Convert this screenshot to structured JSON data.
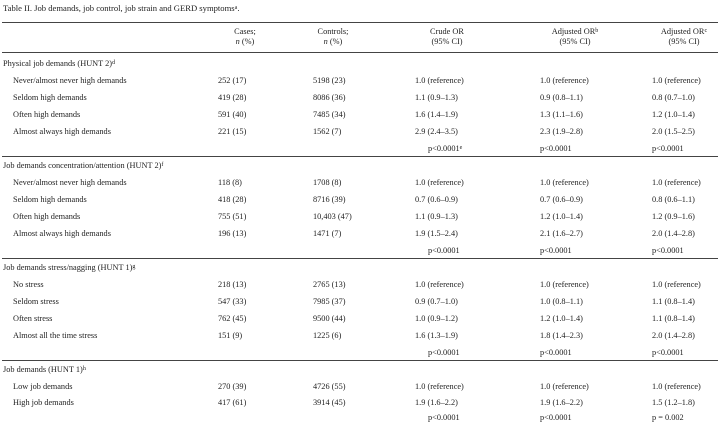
{
  "caption": {
    "text": "Table II. Job demands, job control, job strain and GERD symptoms",
    "sup": "a"
  },
  "columns": [
    {
      "line1": "Cases;",
      "line2_italic": "n",
      "line2_rest": " (%)",
      "sup": ""
    },
    {
      "line1": "Controls;",
      "line2_italic": "n",
      "line2_rest": " (%)",
      "sup": ""
    },
    {
      "line1": "Crude OR",
      "line2_italic": "",
      "line2_rest": "(95% CI)",
      "sup": ""
    },
    {
      "line1": "Adjusted OR",
      "line2_italic": "",
      "line2_rest": "(95% CI)",
      "sup": "b"
    },
    {
      "line1": "Adjusted OR",
      "line2_italic": "",
      "line2_rest": "(95% CI)",
      "sup": "c"
    }
  ],
  "sections": [
    {
      "title": "Physical job demands (HUNT 2)",
      "sup": "d",
      "rows": [
        {
          "label": "Never/almost never high demands",
          "cases": "252 (17)",
          "controls": "5198 (23)",
          "crude": "1.0 (reference)",
          "adj_b": "1.0 (reference)",
          "adj_c": "1.0 (reference)"
        },
        {
          "label": "Seldom high demands",
          "cases": "419 (28)",
          "controls": "8086 (36)",
          "crude": "1.1 (0.9–1.3)",
          "adj_b": "0.9 (0.8–1.1)",
          "adj_c": "0.8 (0.7–1.0)"
        },
        {
          "label": "Often high demands",
          "cases": "591 (40)",
          "controls": "7485 (34)",
          "crude": "1.6 (1.4–1.9)",
          "adj_b": "1.3 (1.1–1.6)",
          "adj_c": "1.2 (1.0–1.4)"
        },
        {
          "label": "Almost always high demands",
          "cases": "221 (15)",
          "controls": "1562 (7)",
          "crude": "2.9 (2.4–3.5)",
          "adj_b": "2.3 (1.9–2.8)",
          "adj_c": "2.0 (1.5–2.5)"
        }
      ],
      "p": {
        "crude": "p<0.0001",
        "crude_sup": "e",
        "adj_b": "p<0.0001",
        "adj_c": "p<0.0001"
      }
    },
    {
      "title": "Job demands concentration/attention (HUNT 2)",
      "sup": "f",
      "rows": [
        {
          "label": "Never/almost never high demands",
          "cases": "118 (8)",
          "controls": "1708 (8)",
          "crude": "1.0 (reference)",
          "adj_b": "1.0 (reference)",
          "adj_c": "1.0 (reference)"
        },
        {
          "label": "Seldom high demands",
          "cases": "418 (28)",
          "controls": "8716 (39)",
          "crude": "0.7 (0.6–0.9)",
          "adj_b": "0.7 (0.6–0.9)",
          "adj_c": "0.8 (0.6–1.1)"
        },
        {
          "label": "Often high demands",
          "cases": "755 (51)",
          "controls": "10,403 (47)",
          "crude": "1.1 (0.9–1.3)",
          "adj_b": "1.2 (1.0–1.4)",
          "adj_c": "1.2 (0.9–1.6)"
        },
        {
          "label": "Almost always high demands",
          "cases": "196 (13)",
          "controls": "1471 (7)",
          "crude": "1.9 (1.5–2.4)",
          "adj_b": "2.1 (1.6–2.7)",
          "adj_c": "2.0 (1.4–2.8)"
        }
      ],
      "p": {
        "crude": "p<0.0001",
        "crude_sup": "",
        "adj_b": "p<0.0001",
        "adj_c": "p<0.0001"
      }
    },
    {
      "title": "Job demands stress/nagging (HUNT 1)",
      "sup": "g",
      "rows": [
        {
          "label": "No stress",
          "cases": "218 (13)",
          "controls": "2765 (13)",
          "crude": "1.0 (reference)",
          "adj_b": "1.0 (reference)",
          "adj_c": "1.0 (reference)"
        },
        {
          "label": "Seldom stress",
          "cases": "547 (33)",
          "controls": "7985 (37)",
          "crude": "0.9 (0.7–1.0)",
          "adj_b": "1.0 (0.8–1.1)",
          "adj_c": "1.1 (0.8–1.4)"
        },
        {
          "label": "Often stress",
          "cases": "762 (45)",
          "controls": "9500 (44)",
          "crude": "1.0 (0.9–1.2)",
          "adj_b": "1.2 (1.0–1.4)",
          "adj_c": "1.1 (0.8–1.4)"
        },
        {
          "label": "Almost all the time stress",
          "cases": "151 (9)",
          "controls": "1225 (6)",
          "crude": "1.6 (1.3–1.9)",
          "adj_b": "1.8 (1.4–2.3)",
          "adj_c": "2.0 (1.4–2.8)"
        }
      ],
      "p": {
        "crude": "p<0.0001",
        "crude_sup": "",
        "adj_b": "p<0.0001",
        "adj_c": "p<0.0001"
      }
    },
    {
      "title": "Job demands (HUNT 1)",
      "sup": "h",
      "rows": [
        {
          "label": "Low job demands",
          "cases": "270 (39)",
          "controls": "4726 (55)",
          "crude": "1.0 (reference)",
          "adj_b": "1.0 (reference)",
          "adj_c": "1.0 (reference)"
        },
        {
          "label": "High job demands",
          "cases": "417 (61)",
          "controls": "3914 (45)",
          "crude": "1.9 (1.6–2.2)",
          "adj_b": "1.9 (1.6–2.2)",
          "adj_c": "1.5 (1.2–1.8)"
        }
      ],
      "p": {
        "crude": "p<0.0001",
        "crude_sup": "",
        "adj_b": "p<0.0001",
        "adj_c": "p = 0.002"
      }
    }
  ]
}
